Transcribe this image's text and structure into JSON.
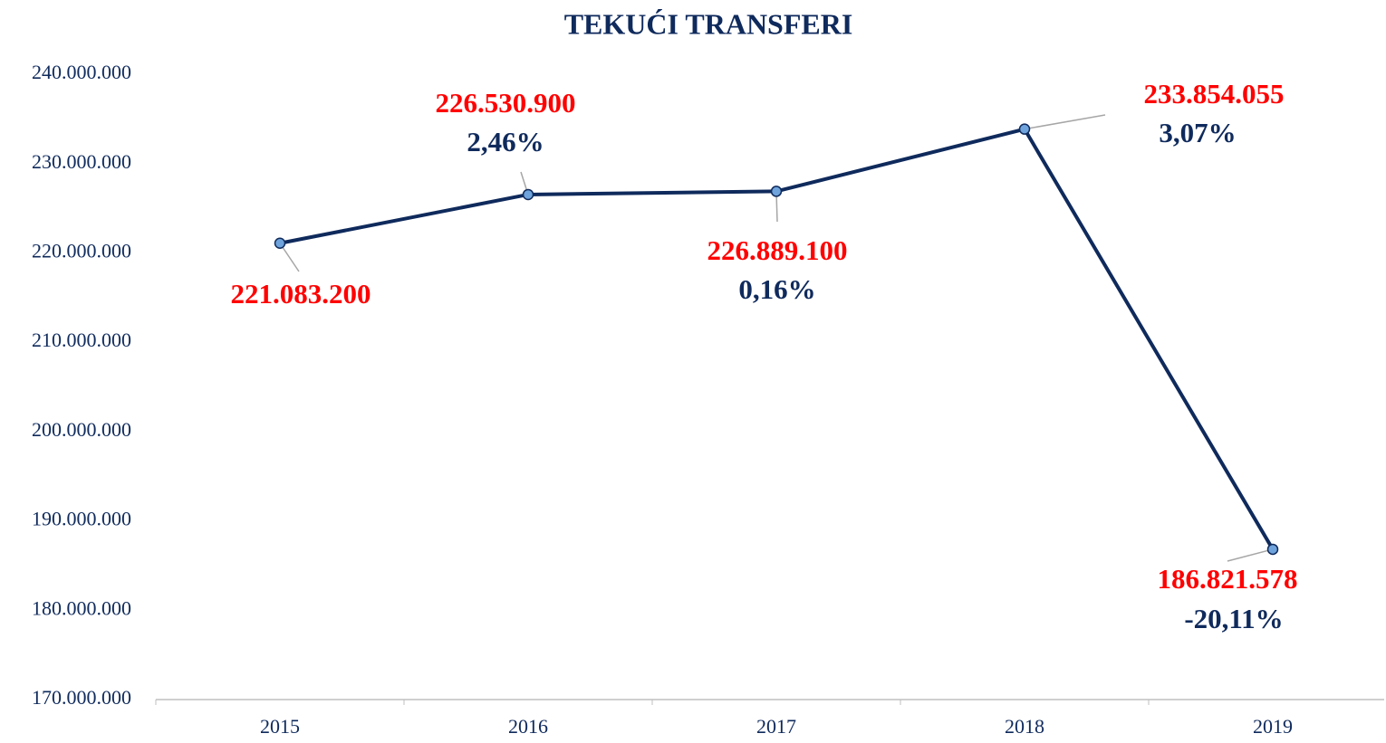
{
  "chart_data": {
    "type": "line",
    "title": "TEKUĆI TRANSFERI",
    "categories": [
      "2015",
      "2016",
      "2017",
      "2018",
      "2019"
    ],
    "series": [
      {
        "name": "Tekući transferi",
        "color": "#0f2a5c",
        "values": [
          221083200,
          226530900,
          226889100,
          233854055,
          186821578
        ],
        "value_labels": [
          "221.083.200",
          "226.530.900",
          "226.889.100",
          "233.854.055",
          "186.821.578"
        ],
        "change_labels": [
          null,
          "2,46%",
          "0,16%",
          "3,07%",
          "-20,11%"
        ]
      }
    ],
    "ylim": [
      170000000,
      240000000
    ],
    "yticks": [
      {
        "value": 170000000,
        "label": "170.000.000"
      },
      {
        "value": 180000000,
        "label": "180.000.000"
      },
      {
        "value": 190000000,
        "label": "190.000.000"
      },
      {
        "value": 200000000,
        "label": "200.000.000"
      },
      {
        "value": 210000000,
        "label": "210.000.000"
      },
      {
        "value": 220000000,
        "label": "220.000.000"
      },
      {
        "value": 230000000,
        "label": "230.000.000"
      },
      {
        "value": 240000000,
        "label": "240.000.000"
      }
    ],
    "grid": false
  }
}
